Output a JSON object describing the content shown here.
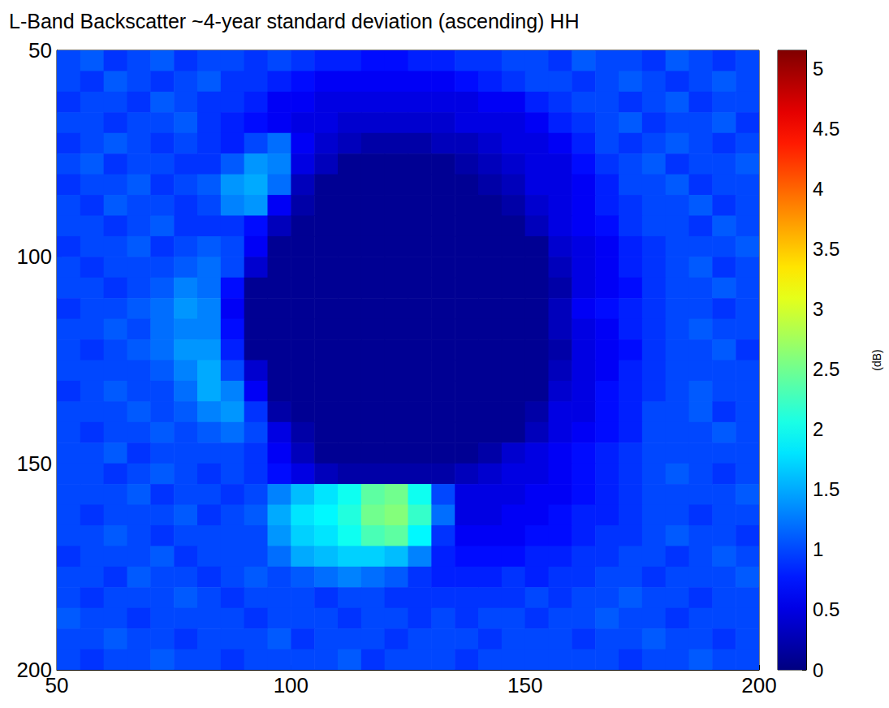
{
  "chart_data": {
    "type": "heatmap",
    "title": "L-Band Backscatter ~4-year standard deviation (ascending) HH",
    "x": [
      52.5,
      57.5,
      62.5,
      67.5,
      72.5,
      77.5,
      82.5,
      87.5,
      92.5,
      97.5,
      102.5,
      107.5,
      112.5,
      117.5,
      122.5,
      127.5,
      132.5,
      137.5,
      142.5,
      147.5,
      152.5,
      157.5,
      162.5,
      167.5,
      172.5,
      177.5,
      182.5,
      187.5,
      192.5,
      197.5
    ],
    "y": [
      52.5,
      57.5,
      62.5,
      67.5,
      72.5,
      77.5,
      82.5,
      87.5,
      92.5,
      97.5,
      102.5,
      107.5,
      112.5,
      117.5,
      122.5,
      127.5,
      132.5,
      137.5,
      142.5,
      147.5,
      152.5,
      157.5,
      162.5,
      167.5,
      172.5,
      177.5,
      182.5,
      187.5,
      192.5,
      197.5
    ],
    "cells": [
      [
        1.0,
        1.1,
        0.9,
        1.0,
        1.1,
        0.9,
        1.0,
        1.0,
        0.9,
        1.0,
        0.9,
        0.8,
        0.8,
        0.7,
        0.7,
        0.8,
        0.8,
        0.9,
        0.9,
        1.0,
        1.0,
        0.9,
        1.1,
        1.0,
        1.0,
        0.9,
        1.1,
        1.0,
        0.9,
        1.0
      ],
      [
        1.0,
        0.9,
        1.1,
        1.0,
        0.9,
        1.0,
        1.1,
        0.9,
        0.9,
        0.8,
        0.7,
        0.6,
        0.6,
        0.6,
        0.6,
        0.6,
        0.6,
        0.7,
        0.8,
        0.9,
        1.0,
        1.0,
        0.9,
        1.0,
        1.1,
        1.0,
        0.9,
        1.0,
        1.1,
        1.0
      ],
      [
        0.9,
        1.0,
        1.0,
        0.9,
        1.1,
        1.0,
        0.9,
        0.9,
        0.8,
        0.6,
        0.6,
        0.5,
        0.5,
        0.5,
        0.5,
        0.5,
        0.5,
        0.5,
        0.6,
        0.6,
        0.8,
        0.9,
        1.0,
        1.0,
        0.9,
        1.0,
        1.1,
        0.9,
        1.0,
        1.0
      ],
      [
        1.0,
        1.0,
        0.9,
        1.0,
        1.0,
        1.1,
        0.9,
        0.8,
        0.7,
        0.6,
        0.5,
        0.5,
        0.4,
        0.4,
        0.4,
        0.4,
        0.4,
        0.5,
        0.5,
        0.5,
        0.6,
        0.8,
        0.9,
        1.0,
        1.1,
        0.9,
        1.0,
        1.0,
        1.1,
        0.9
      ],
      [
        0.9,
        1.0,
        1.1,
        1.0,
        0.9,
        1.0,
        0.9,
        0.8,
        1.0,
        1.2,
        0.6,
        0.4,
        0.3,
        0.2,
        0.2,
        0.2,
        0.3,
        0.3,
        0.4,
        0.5,
        0.5,
        0.6,
        0.8,
        1.0,
        0.9,
        1.0,
        1.1,
        1.0,
        0.9,
        1.0
      ],
      [
        1.0,
        1.1,
        0.9,
        1.0,
        1.0,
        0.9,
        0.9,
        1.1,
        1.4,
        1.3,
        0.5,
        0.3,
        0.1,
        0.1,
        0.1,
        0.1,
        0.1,
        0.2,
        0.3,
        0.4,
        0.5,
        0.5,
        0.7,
        0.9,
        1.0,
        1.1,
        0.9,
        1.0,
        1.0,
        1.1
      ],
      [
        0.9,
        1.0,
        1.0,
        1.1,
        0.9,
        1.0,
        1.1,
        1.4,
        1.5,
        1.2,
        0.3,
        0.1,
        0.1,
        0.1,
        0.1,
        0.1,
        0.1,
        0.1,
        0.2,
        0.3,
        0.5,
        0.5,
        0.6,
        0.8,
        1.0,
        1.0,
        1.1,
        0.9,
        1.0,
        1.0
      ],
      [
        1.0,
        0.9,
        1.1,
        1.0,
        1.0,
        0.9,
        1.0,
        1.3,
        1.4,
        0.6,
        0.2,
        0.1,
        0.1,
        0.1,
        0.1,
        0.1,
        0.1,
        0.1,
        0.1,
        0.2,
        0.4,
        0.5,
        0.6,
        0.8,
        0.9,
        1.0,
        1.0,
        1.1,
        0.9,
        1.0
      ],
      [
        1.0,
        1.0,
        0.9,
        1.0,
        1.1,
        0.9,
        0.9,
        0.9,
        0.7,
        0.3,
        0.1,
        0.1,
        0.1,
        0.1,
        0.1,
        0.1,
        0.1,
        0.1,
        0.1,
        0.1,
        0.3,
        0.5,
        0.6,
        0.7,
        0.9,
        1.0,
        1.0,
        0.9,
        1.1,
        1.0
      ],
      [
        0.9,
        1.0,
        1.0,
        1.1,
        0.9,
        1.0,
        1.1,
        1.0,
        0.6,
        0.1,
        0.1,
        0.1,
        0.1,
        0.1,
        0.1,
        0.1,
        0.1,
        0.1,
        0.1,
        0.1,
        0.1,
        0.4,
        0.5,
        0.6,
        0.8,
        0.9,
        1.0,
        1.0,
        1.0,
        1.1
      ],
      [
        1.0,
        0.9,
        1.0,
        1.0,
        1.0,
        1.1,
        1.2,
        1.0,
        0.4,
        0.1,
        0.1,
        0.1,
        0.1,
        0.1,
        0.1,
        0.1,
        0.1,
        0.1,
        0.1,
        0.1,
        0.1,
        0.3,
        0.5,
        0.6,
        0.8,
        0.9,
        1.0,
        1.1,
        0.9,
        1.0
      ],
      [
        1.0,
        1.0,
        0.9,
        1.0,
        1.1,
        1.3,
        1.2,
        0.7,
        0.1,
        0.1,
        0.1,
        0.1,
        0.1,
        0.1,
        0.1,
        0.1,
        0.1,
        0.1,
        0.1,
        0.1,
        0.1,
        0.2,
        0.5,
        0.6,
        0.7,
        0.9,
        1.0,
        1.0,
        1.1,
        1.0
      ],
      [
        0.9,
        1.0,
        1.0,
        1.1,
        1.2,
        1.4,
        1.3,
        0.6,
        0.1,
        0.1,
        0.1,
        0.1,
        0.1,
        0.1,
        0.1,
        0.1,
        0.1,
        0.1,
        0.1,
        0.1,
        0.1,
        0.3,
        0.6,
        0.7,
        0.8,
        0.9,
        1.0,
        1.0,
        0.9,
        1.0
      ],
      [
        1.0,
        1.0,
        1.1,
        1.0,
        1.2,
        1.3,
        1.3,
        0.7,
        0.1,
        0.1,
        0.1,
        0.1,
        0.1,
        0.1,
        0.1,
        0.1,
        0.1,
        0.1,
        0.1,
        0.1,
        0.1,
        0.3,
        0.5,
        0.6,
        0.8,
        0.9,
        1.0,
        1.1,
        1.0,
        1.0
      ],
      [
        1.0,
        0.9,
        1.0,
        1.1,
        1.2,
        1.4,
        1.4,
        0.8,
        0.1,
        0.1,
        0.1,
        0.1,
        0.1,
        0.1,
        0.1,
        0.1,
        0.1,
        0.1,
        0.1,
        0.1,
        0.1,
        0.2,
        0.5,
        0.6,
        0.7,
        0.9,
        1.0,
        1.0,
        1.1,
        0.9
      ],
      [
        1.0,
        1.0,
        1.0,
        1.0,
        1.1,
        1.3,
        1.5,
        1.0,
        0.4,
        0.1,
        0.1,
        0.1,
        0.1,
        0.1,
        0.1,
        0.1,
        0.1,
        0.1,
        0.1,
        0.1,
        0.1,
        0.3,
        0.5,
        0.6,
        0.8,
        0.9,
        1.0,
        1.0,
        1.0,
        1.0
      ],
      [
        0.9,
        1.0,
        1.1,
        1.0,
        1.0,
        1.2,
        1.5,
        1.3,
        0.6,
        0.1,
        0.1,
        0.1,
        0.1,
        0.1,
        0.1,
        0.1,
        0.1,
        0.1,
        0.1,
        0.1,
        0.1,
        0.4,
        0.5,
        0.7,
        0.8,
        0.9,
        1.0,
        1.1,
        1.0,
        1.0
      ],
      [
        1.0,
        1.0,
        1.0,
        1.1,
        1.0,
        1.1,
        1.3,
        1.4,
        0.9,
        0.2,
        0.1,
        0.1,
        0.1,
        0.1,
        0.1,
        0.1,
        0.1,
        0.1,
        0.1,
        0.1,
        0.2,
        0.5,
        0.5,
        0.7,
        0.8,
        1.0,
        1.0,
        1.1,
        0.9,
        1.0
      ],
      [
        1.0,
        0.9,
        1.0,
        1.0,
        1.1,
        1.0,
        1.1,
        1.2,
        1.0,
        0.5,
        0.2,
        0.1,
        0.1,
        0.1,
        0.1,
        0.1,
        0.1,
        0.1,
        0.1,
        0.1,
        0.3,
        0.5,
        0.6,
        0.7,
        0.8,
        1.0,
        1.0,
        1.0,
        1.1,
        1.0
      ],
      [
        1.0,
        1.0,
        1.1,
        0.9,
        1.0,
        1.0,
        1.0,
        1.0,
        0.9,
        0.6,
        0.3,
        0.1,
        0.1,
        0.1,
        0.1,
        0.1,
        0.1,
        0.1,
        0.2,
        0.4,
        0.5,
        0.6,
        0.7,
        0.8,
        0.9,
        1.0,
        1.0,
        1.0,
        1.0,
        1.0
      ],
      [
        1.0,
        1.0,
        0.9,
        1.0,
        1.1,
        1.0,
        0.9,
        1.0,
        0.9,
        0.7,
        0.5,
        0.3,
        0.2,
        0.2,
        0.2,
        0.2,
        0.2,
        0.3,
        0.4,
        0.5,
        0.5,
        0.6,
        0.7,
        0.8,
        0.9,
        1.0,
        1.1,
        1.0,
        0.9,
        1.0
      ],
      [
        1.0,
        1.0,
        1.0,
        1.1,
        0.9,
        1.0,
        1.0,
        0.9,
        1.0,
        1.3,
        1.6,
        1.8,
        2.0,
        2.4,
        2.5,
        2.0,
        1.0,
        0.5,
        0.5,
        0.5,
        0.6,
        0.6,
        0.7,
        0.8,
        0.9,
        1.0,
        1.0,
        1.0,
        1.0,
        1.1
      ],
      [
        1.0,
        0.9,
        1.0,
        1.0,
        1.0,
        1.1,
        0.9,
        1.0,
        1.1,
        1.5,
        1.8,
        1.9,
        2.1,
        2.5,
        2.6,
        2.2,
        1.2,
        0.5,
        0.5,
        0.6,
        0.6,
        0.7,
        0.8,
        0.8,
        0.9,
        1.0,
        1.0,
        0.9,
        1.0,
        1.0
      ],
      [
        1.0,
        1.0,
        1.1,
        1.0,
        0.9,
        1.0,
        1.0,
        1.0,
        1.0,
        1.4,
        1.7,
        1.8,
        2.0,
        2.3,
        2.4,
        1.9,
        0.9,
        0.6,
        0.6,
        0.6,
        0.7,
        0.7,
        0.8,
        0.9,
        0.9,
        1.0,
        1.1,
        1.0,
        1.0,
        0.9
      ],
      [
        0.9,
        1.0,
        1.0,
        1.0,
        1.1,
        0.9,
        1.0,
        1.0,
        1.0,
        1.2,
        1.5,
        1.6,
        1.7,
        1.7,
        1.6,
        1.3,
        0.8,
        0.7,
        0.7,
        0.7,
        0.8,
        0.8,
        0.9,
        0.9,
        1.0,
        1.0,
        0.9,
        1.0,
        1.1,
        1.0
      ],
      [
        1.0,
        1.0,
        0.9,
        1.1,
        1.0,
        1.0,
        0.9,
        1.0,
        1.1,
        1.0,
        1.1,
        1.2,
        1.3,
        1.2,
        1.1,
        0.9,
        0.8,
        0.8,
        0.8,
        0.9,
        0.8,
        0.9,
        0.9,
        1.0,
        1.0,
        0.9,
        1.0,
        1.0,
        1.0,
        1.1
      ],
      [
        1.0,
        0.9,
        1.0,
        1.0,
        1.0,
        1.1,
        1.0,
        0.9,
        1.0,
        1.0,
        1.0,
        0.9,
        1.0,
        1.0,
        0.9,
        0.9,
        0.9,
        0.9,
        0.9,
        0.9,
        1.0,
        0.9,
        1.0,
        1.0,
        1.1,
        1.0,
        1.0,
        0.9,
        1.0,
        1.0
      ],
      [
        1.1,
        1.0,
        1.0,
        0.9,
        1.0,
        1.0,
        1.0,
        1.0,
        0.9,
        1.0,
        1.0,
        1.0,
        0.9,
        1.0,
        1.0,
        0.9,
        1.0,
        0.9,
        1.0,
        1.0,
        0.9,
        1.0,
        1.0,
        1.1,
        1.0,
        1.0,
        0.9,
        1.0,
        1.0,
        1.0
      ],
      [
        1.0,
        1.0,
        1.1,
        1.0,
        1.0,
        0.9,
        1.0,
        1.0,
        1.0,
        1.1,
        0.9,
        1.0,
        1.0,
        1.0,
        0.9,
        1.0,
        1.0,
        1.0,
        0.9,
        1.0,
        1.0,
        1.0,
        0.9,
        1.0,
        1.0,
        1.1,
        1.0,
        1.0,
        0.9,
        1.0
      ],
      [
        1.0,
        0.9,
        1.0,
        1.0,
        1.1,
        1.0,
        1.0,
        0.9,
        1.0,
        1.0,
        1.0,
        1.0,
        1.1,
        0.9,
        1.0,
        1.0,
        1.0,
        0.9,
        1.0,
        1.0,
        1.0,
        1.0,
        1.0,
        1.0,
        0.9,
        1.0,
        1.0,
        1.1,
        1.0,
        1.0
      ]
    ],
    "xlim": [
      50,
      200
    ],
    "ylim": [
      200,
      50
    ],
    "xticks": [
      50,
      100,
      150,
      200
    ],
    "yticks": [
      50,
      100,
      150,
      200
    ],
    "colorbar": {
      "range": [
        0,
        5.15
      ],
      "ticks": [
        0,
        0.5,
        1,
        1.5,
        2,
        2.5,
        3,
        3.5,
        4,
        4.5,
        5
      ],
      "label": "(dB)"
    }
  }
}
